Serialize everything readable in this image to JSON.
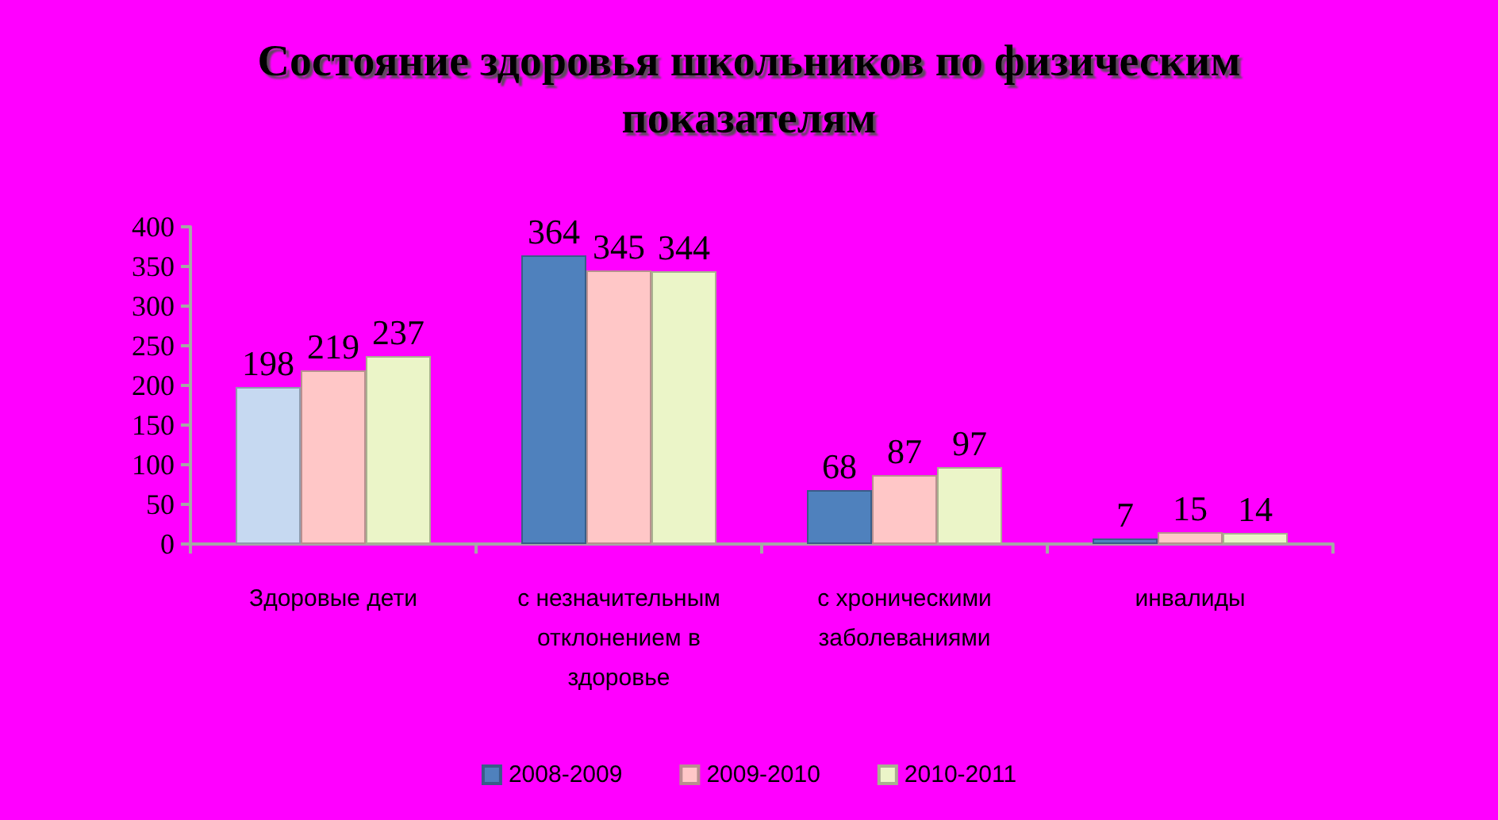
{
  "chart_data": {
    "type": "bar",
    "title": "Состояние здоровья школьников по физическим показателям",
    "categories": [
      "Здоровые дети",
      "с незначительным отклонением в здоровье",
      "с хроническими заболеваниями",
      "инвалиды"
    ],
    "series": [
      {
        "name": "2008-2009",
        "color": "#4f81bd",
        "colors": [
          "#c6d9f1",
          "#4f81bd",
          "#4f81bd",
          "#4f81bd"
        ],
        "values": [
          198,
          364,
          68,
          7
        ]
      },
      {
        "name": "2009-2010",
        "color": "#ffc7c7",
        "values": [
          219,
          345,
          87,
          15
        ]
      },
      {
        "name": "2010-2011",
        "color": "#ebf5c8",
        "values": [
          237,
          344,
          97,
          14
        ]
      }
    ],
    "ylim": [
      0,
      400
    ],
    "yticks": [
      0,
      50,
      100,
      150,
      200,
      250,
      300,
      350,
      400
    ],
    "grid": false,
    "legend": "bottom",
    "data_labels": true
  }
}
